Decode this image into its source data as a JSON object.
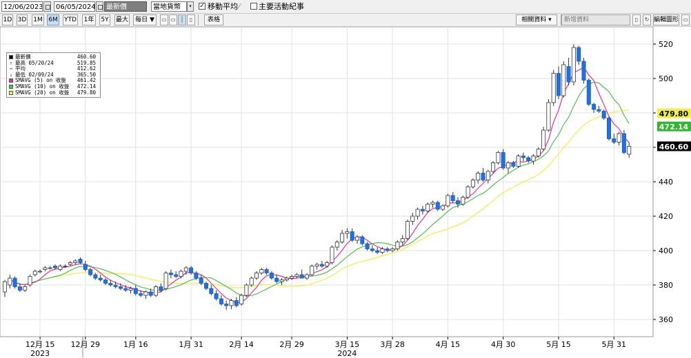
{
  "toolbar": {
    "start_date": "12/06/2023",
    "end_date": "06/05/2024",
    "field_select": "最新價",
    "currency_select": "當地貨幣",
    "moving_average_checked": true,
    "moving_average_label": "移動平均",
    "events_checked": false,
    "events_label": "主要活動紀事",
    "range_buttons": [
      "1D",
      "3D",
      "1M",
      "6M",
      "YTD",
      "1年",
      "5Y",
      "最大"
    ],
    "selected_range": "6M",
    "frequency": "每日 ▼",
    "table_label": "表格",
    "related_data": "相關資料 ▾",
    "add_data": "新增資料",
    "edit_chart": "編輯圖形"
  },
  "colors": {
    "up_candle": "#ffffff",
    "down_candle": "#1e6fe8",
    "sma5": "#e8319a",
    "sma10": "#4cc44c",
    "sma20": "#f0f03c",
    "grid": "#e2e2e2"
  },
  "chart_data": {
    "type": "candlestick",
    "legend": [
      {
        "symbol": "■",
        "label": "最新價",
        "value": "460.60",
        "color": "#000000"
      },
      {
        "symbol": "↑",
        "label": "最高 05/20/24",
        "value": "519.85"
      },
      {
        "symbol": "↔",
        "label": "平均",
        "value": "412.62"
      },
      {
        "symbol": "↓",
        "label": "最低 02/09/24",
        "value": "365.50"
      },
      {
        "symbol": "■",
        "label": "SMAVG (5)  on 收盤",
        "value": "461.42",
        "color": "#e8319a"
      },
      {
        "symbol": "■",
        "label": "SMAVG (10) on 收盤",
        "value": "472.14",
        "color": "#4cc44c"
      },
      {
        "symbol": "■",
        "label": "SMAVG (20) on 收盤",
        "value": "479.80",
        "color": "#f0f03c"
      }
    ],
    "y_axis": {
      "min": 350,
      "max": 530,
      "ticks": [
        360,
        380,
        400,
        420,
        440,
        460,
        480,
        500,
        520
      ]
    },
    "x_ticks": [
      {
        "label": "12月 15",
        "date": "2023-12-15"
      },
      {
        "label": "12月 29",
        "date": "2023-12-29"
      },
      {
        "label": "1月 16",
        "date": "2024-01-16"
      },
      {
        "label": "1月 31",
        "date": "2024-01-31"
      },
      {
        "label": "2月 14",
        "date": "2024-02-14"
      },
      {
        "label": "2月 29",
        "date": "2024-02-29"
      },
      {
        "label": "3月 15",
        "date": "2024-03-15"
      },
      {
        "label": "3月 28",
        "date": "2024-03-28"
      },
      {
        "label": "4月 15",
        "date": "2024-04-15"
      },
      {
        "label": "4月 30",
        "date": "2024-04-30"
      },
      {
        "label": "5月 15",
        "date": "2024-05-15"
      },
      {
        "label": "5月 31",
        "date": "2024-05-31"
      }
    ],
    "year_labels": [
      {
        "label": "2023",
        "date": "2023-12-15"
      },
      {
        "label": "2024",
        "date": "2024-03-15"
      }
    ],
    "price_flags": [
      {
        "label": "479.80",
        "value": 479.8,
        "bg": "#f0f03c",
        "fg": "#000000"
      },
      {
        "label": "472.14",
        "value": 472.14,
        "bg": "#2db82d",
        "fg": "#ffffff"
      },
      {
        "label": "460.60",
        "value": 460.6,
        "bg": "#000000",
        "fg": "#ffffff"
      }
    ],
    "candles": [
      {
        "d": "2023-12-06",
        "o": 376,
        "h": 383,
        "l": 373,
        "c": 382
      },
      {
        "d": "2023-12-07",
        "o": 380,
        "h": 386,
        "l": 378,
        "c": 384
      },
      {
        "d": "2023-12-08",
        "o": 384,
        "h": 385,
        "l": 378,
        "c": 379
      },
      {
        "d": "2023-12-11",
        "o": 379,
        "h": 381,
        "l": 376,
        "c": 377
      },
      {
        "d": "2023-12-12",
        "o": 377,
        "h": 380,
        "l": 376,
        "c": 379
      },
      {
        "d": "2023-12-13",
        "o": 380,
        "h": 386,
        "l": 379,
        "c": 385
      },
      {
        "d": "2023-12-14",
        "o": 386,
        "h": 389,
        "l": 385,
        "c": 388
      },
      {
        "d": "2023-12-15",
        "o": 388,
        "h": 389,
        "l": 387,
        "c": 388
      },
      {
        "d": "2023-12-18",
        "o": 389,
        "h": 391,
        "l": 388,
        "c": 390
      },
      {
        "d": "2023-12-19",
        "o": 390,
        "h": 391,
        "l": 389,
        "c": 390
      },
      {
        "d": "2023-12-20",
        "o": 391,
        "h": 392,
        "l": 389,
        "c": 390
      },
      {
        "d": "2023-12-21",
        "o": 389,
        "h": 392,
        "l": 388,
        "c": 391
      },
      {
        "d": "2023-12-22",
        "o": 391,
        "h": 392,
        "l": 390,
        "c": 391
      },
      {
        "d": "2023-12-26",
        "o": 392,
        "h": 394,
        "l": 391,
        "c": 393
      },
      {
        "d": "2023-12-27",
        "o": 393,
        "h": 395,
        "l": 392,
        "c": 394
      },
      {
        "d": "2023-12-28",
        "o": 395,
        "h": 396,
        "l": 392,
        "c": 393
      },
      {
        "d": "2023-12-29",
        "o": 392,
        "h": 394,
        "l": 388,
        "c": 389
      },
      {
        "d": "2024-01-02",
        "o": 389,
        "h": 390,
        "l": 385,
        "c": 386
      },
      {
        "d": "2024-01-03",
        "o": 386,
        "h": 387,
        "l": 383,
        "c": 384
      },
      {
        "d": "2024-01-04",
        "o": 384,
        "h": 386,
        "l": 382,
        "c": 383
      },
      {
        "d": "2024-01-05",
        "o": 383,
        "h": 384,
        "l": 380,
        "c": 381
      },
      {
        "d": "2024-01-08",
        "o": 381,
        "h": 383,
        "l": 379,
        "c": 380
      },
      {
        "d": "2024-01-09",
        "o": 380,
        "h": 382,
        "l": 378,
        "c": 379
      },
      {
        "d": "2024-01-10",
        "o": 379,
        "h": 381,
        "l": 377,
        "c": 378
      },
      {
        "d": "2024-01-11",
        "o": 378,
        "h": 380,
        "l": 376,
        "c": 377
      },
      {
        "d": "2024-01-12",
        "o": 377,
        "h": 379,
        "l": 375,
        "c": 378
      },
      {
        "d": "2024-01-16",
        "o": 378,
        "h": 380,
        "l": 374,
        "c": 375
      },
      {
        "d": "2024-01-17",
        "o": 375,
        "h": 377,
        "l": 373,
        "c": 374
      },
      {
        "d": "2024-01-18",
        "o": 374,
        "h": 377,
        "l": 372,
        "c": 376
      },
      {
        "d": "2024-01-19",
        "o": 376,
        "h": 378,
        "l": 373,
        "c": 374
      },
      {
        "d": "2024-01-22",
        "o": 374,
        "h": 380,
        "l": 373,
        "c": 379
      },
      {
        "d": "2024-01-23",
        "o": 379,
        "h": 381,
        "l": 376,
        "c": 377
      },
      {
        "d": "2024-01-24",
        "o": 378,
        "h": 388,
        "l": 377,
        "c": 387
      },
      {
        "d": "2024-01-25",
        "o": 387,
        "h": 389,
        "l": 384,
        "c": 386
      },
      {
        "d": "2024-01-26",
        "o": 386,
        "h": 388,
        "l": 384,
        "c": 385
      },
      {
        "d": "2024-01-29",
        "o": 385,
        "h": 389,
        "l": 384,
        "c": 388
      },
      {
        "d": "2024-01-30",
        "o": 388,
        "h": 391,
        "l": 386,
        "c": 390
      },
      {
        "d": "2024-01-31",
        "o": 390,
        "h": 391,
        "l": 386,
        "c": 387
      },
      {
        "d": "2024-02-01",
        "o": 387,
        "h": 388,
        "l": 383,
        "c": 384
      },
      {
        "d": "2024-02-02",
        "o": 384,
        "h": 386,
        "l": 380,
        "c": 381
      },
      {
        "d": "2024-02-05",
        "o": 381,
        "h": 382,
        "l": 377,
        "c": 378
      },
      {
        "d": "2024-02-06",
        "o": 378,
        "h": 380,
        "l": 374,
        "c": 375
      },
      {
        "d": "2024-02-07",
        "o": 375,
        "h": 377,
        "l": 371,
        "c": 372
      },
      {
        "d": "2024-02-08",
        "o": 372,
        "h": 374,
        "l": 368,
        "c": 369
      },
      {
        "d": "2024-02-09",
        "o": 369,
        "h": 371,
        "l": 365.5,
        "c": 368
      },
      {
        "d": "2024-02-12",
        "o": 368,
        "h": 372,
        "l": 366,
        "c": 371
      },
      {
        "d": "2024-02-13",
        "o": 371,
        "h": 373,
        "l": 367,
        "c": 368
      },
      {
        "d": "2024-02-14",
        "o": 369,
        "h": 375,
        "l": 368,
        "c": 374
      },
      {
        "d": "2024-02-15",
        "o": 374,
        "h": 381,
        "l": 373,
        "c": 380
      },
      {
        "d": "2024-02-16",
        "o": 380,
        "h": 385,
        "l": 379,
        "c": 384
      },
      {
        "d": "2024-02-20",
        "o": 384,
        "h": 388,
        "l": 383,
        "c": 387
      },
      {
        "d": "2024-02-21",
        "o": 387,
        "h": 390,
        "l": 386,
        "c": 389
      },
      {
        "d": "2024-02-22",
        "o": 389,
        "h": 390,
        "l": 386,
        "c": 387
      },
      {
        "d": "2024-02-23",
        "o": 387,
        "h": 388,
        "l": 383,
        "c": 384
      },
      {
        "d": "2024-02-26",
        "o": 384,
        "h": 386,
        "l": 381,
        "c": 382
      },
      {
        "d": "2024-02-27",
        "o": 382,
        "h": 384,
        "l": 380,
        "c": 383
      },
      {
        "d": "2024-02-28",
        "o": 383,
        "h": 385,
        "l": 382,
        "c": 384
      },
      {
        "d": "2024-02-29",
        "o": 384,
        "h": 386,
        "l": 383,
        "c": 385
      },
      {
        "d": "2024-03-01",
        "o": 385,
        "h": 387,
        "l": 384,
        "c": 386
      },
      {
        "d": "2024-03-04",
        "o": 386,
        "h": 389,
        "l": 385,
        "c": 384
      },
      {
        "d": "2024-03-05",
        "o": 384,
        "h": 387,
        "l": 383,
        "c": 386
      },
      {
        "d": "2024-03-06",
        "o": 386,
        "h": 392,
        "l": 385,
        "c": 391
      },
      {
        "d": "2024-03-07",
        "o": 391,
        "h": 393,
        "l": 389,
        "c": 392
      },
      {
        "d": "2024-03-08",
        "o": 392,
        "h": 394,
        "l": 390,
        "c": 391
      },
      {
        "d": "2024-03-11",
        "o": 391,
        "h": 394,
        "l": 390,
        "c": 393
      },
      {
        "d": "2024-03-12",
        "o": 393,
        "h": 403,
        "l": 392,
        "c": 402
      },
      {
        "d": "2024-03-13",
        "o": 402,
        "h": 406,
        "l": 400,
        "c": 405
      },
      {
        "d": "2024-03-14",
        "o": 405,
        "h": 412,
        "l": 404,
        "c": 410
      },
      {
        "d": "2024-03-15",
        "o": 410,
        "h": 413,
        "l": 407,
        "c": 411
      },
      {
        "d": "2024-03-18",
        "o": 411,
        "h": 413,
        "l": 405,
        "c": 406
      },
      {
        "d": "2024-03-19",
        "o": 406,
        "h": 409,
        "l": 404,
        "c": 408
      },
      {
        "d": "2024-03-20",
        "o": 408,
        "h": 409,
        "l": 403,
        "c": 404
      },
      {
        "d": "2024-03-21",
        "o": 404,
        "h": 405,
        "l": 400,
        "c": 401
      },
      {
        "d": "2024-03-22",
        "o": 401,
        "h": 403,
        "l": 399,
        "c": 400
      },
      {
        "d": "2024-03-25",
        "o": 400,
        "h": 402,
        "l": 398,
        "c": 399
      },
      {
        "d": "2024-03-26",
        "o": 399,
        "h": 402,
        "l": 398,
        "c": 401
      },
      {
        "d": "2024-03-27",
        "o": 401,
        "h": 402,
        "l": 399,
        "c": 400
      },
      {
        "d": "2024-03-28",
        "o": 400,
        "h": 402,
        "l": 399,
        "c": 401
      },
      {
        "d": "2024-04-01",
        "o": 401,
        "h": 406,
        "l": 400,
        "c": 405
      },
      {
        "d": "2024-04-02",
        "o": 405,
        "h": 409,
        "l": 403,
        "c": 407
      },
      {
        "d": "2024-04-03",
        "o": 407,
        "h": 418,
        "l": 406,
        "c": 417
      },
      {
        "d": "2024-04-04",
        "o": 417,
        "h": 422,
        "l": 415,
        "c": 420
      },
      {
        "d": "2024-04-05",
        "o": 420,
        "h": 425,
        "l": 418,
        "c": 424
      },
      {
        "d": "2024-04-08",
        "o": 424,
        "h": 426,
        "l": 421,
        "c": 423
      },
      {
        "d": "2024-04-09",
        "o": 423,
        "h": 428,
        "l": 422,
        "c": 427
      },
      {
        "d": "2024-04-10",
        "o": 427,
        "h": 429,
        "l": 425,
        "c": 428
      },
      {
        "d": "2024-04-11",
        "o": 428,
        "h": 429,
        "l": 423,
        "c": 424
      },
      {
        "d": "2024-04-12",
        "o": 424,
        "h": 427,
        "l": 423,
        "c": 426
      },
      {
        "d": "2024-04-15",
        "o": 426,
        "h": 433,
        "l": 425,
        "c": 432
      },
      {
        "d": "2024-04-16",
        "o": 432,
        "h": 434,
        "l": 428,
        "c": 429
      },
      {
        "d": "2024-04-17",
        "o": 429,
        "h": 431,
        "l": 425,
        "c": 427
      },
      {
        "d": "2024-04-18",
        "o": 427,
        "h": 432,
        "l": 426,
        "c": 431
      },
      {
        "d": "2024-04-19",
        "o": 431,
        "h": 438,
        "l": 430,
        "c": 437
      },
      {
        "d": "2024-04-22",
        "o": 437,
        "h": 442,
        "l": 436,
        "c": 441
      },
      {
        "d": "2024-04-23",
        "o": 441,
        "h": 446,
        "l": 439,
        "c": 445
      },
      {
        "d": "2024-04-24",
        "o": 445,
        "h": 448,
        "l": 440,
        "c": 441
      },
      {
        "d": "2024-04-25",
        "o": 441,
        "h": 447,
        "l": 439,
        "c": 446
      },
      {
        "d": "2024-04-26",
        "o": 446,
        "h": 452,
        "l": 445,
        "c": 451
      },
      {
        "d": "2024-04-29",
        "o": 451,
        "h": 458,
        "l": 450,
        "c": 457
      },
      {
        "d": "2024-04-30",
        "o": 457,
        "h": 459,
        "l": 447,
        "c": 448
      },
      {
        "d": "2024-05-01",
        "o": 448,
        "h": 452,
        "l": 445,
        "c": 451
      },
      {
        "d": "2024-05-02",
        "o": 451,
        "h": 452,
        "l": 448,
        "c": 449
      },
      {
        "d": "2024-05-03",
        "o": 449,
        "h": 456,
        "l": 448,
        "c": 455
      },
      {
        "d": "2024-05-06",
        "o": 455,
        "h": 457,
        "l": 452,
        "c": 454
      },
      {
        "d": "2024-05-07",
        "o": 454,
        "h": 455,
        "l": 451,
        "c": 452
      },
      {
        "d": "2024-05-08",
        "o": 452,
        "h": 456,
        "l": 450,
        "c": 455
      },
      {
        "d": "2024-05-09",
        "o": 455,
        "h": 460,
        "l": 454,
        "c": 459
      },
      {
        "d": "2024-05-10",
        "o": 459,
        "h": 472,
        "l": 458,
        "c": 470
      },
      {
        "d": "2024-05-13",
        "o": 470,
        "h": 488,
        "l": 469,
        "c": 486
      },
      {
        "d": "2024-05-14",
        "o": 486,
        "h": 505,
        "l": 484,
        "c": 503
      },
      {
        "d": "2024-05-15",
        "o": 503,
        "h": 507,
        "l": 488,
        "c": 490
      },
      {
        "d": "2024-05-16",
        "o": 490,
        "h": 510,
        "l": 489,
        "c": 508
      },
      {
        "d": "2024-05-17",
        "o": 507,
        "h": 512,
        "l": 496,
        "c": 498
      },
      {
        "d": "2024-05-20",
        "o": 498,
        "h": 519.85,
        "l": 496,
        "c": 518
      },
      {
        "d": "2024-05-21",
        "o": 518,
        "h": 519,
        "l": 508,
        "c": 510
      },
      {
        "d": "2024-05-22",
        "o": 510,
        "h": 512,
        "l": 497,
        "c": 499
      },
      {
        "d": "2024-05-23",
        "o": 499,
        "h": 500,
        "l": 484,
        "c": 485
      },
      {
        "d": "2024-05-24",
        "o": 485,
        "h": 486,
        "l": 480,
        "c": 482
      },
      {
        "d": "2024-05-28",
        "o": 482,
        "h": 484,
        "l": 480,
        "c": 481
      },
      {
        "d": "2024-05-29",
        "o": 481,
        "h": 482,
        "l": 476,
        "c": 477
      },
      {
        "d": "2024-05-30",
        "o": 477,
        "h": 478,
        "l": 464,
        "c": 465
      },
      {
        "d": "2024-05-31",
        "o": 465,
        "h": 468,
        "l": 462,
        "c": 463
      },
      {
        "d": "2024-06-03",
        "o": 463,
        "h": 469,
        "l": 461,
        "c": 468
      },
      {
        "d": "2024-06-04",
        "o": 468,
        "h": 470,
        "l": 456,
        "c": 457
      },
      {
        "d": "2024-06-05",
        "o": 456,
        "h": 463,
        "l": 454,
        "c": 460.6
      }
    ]
  }
}
